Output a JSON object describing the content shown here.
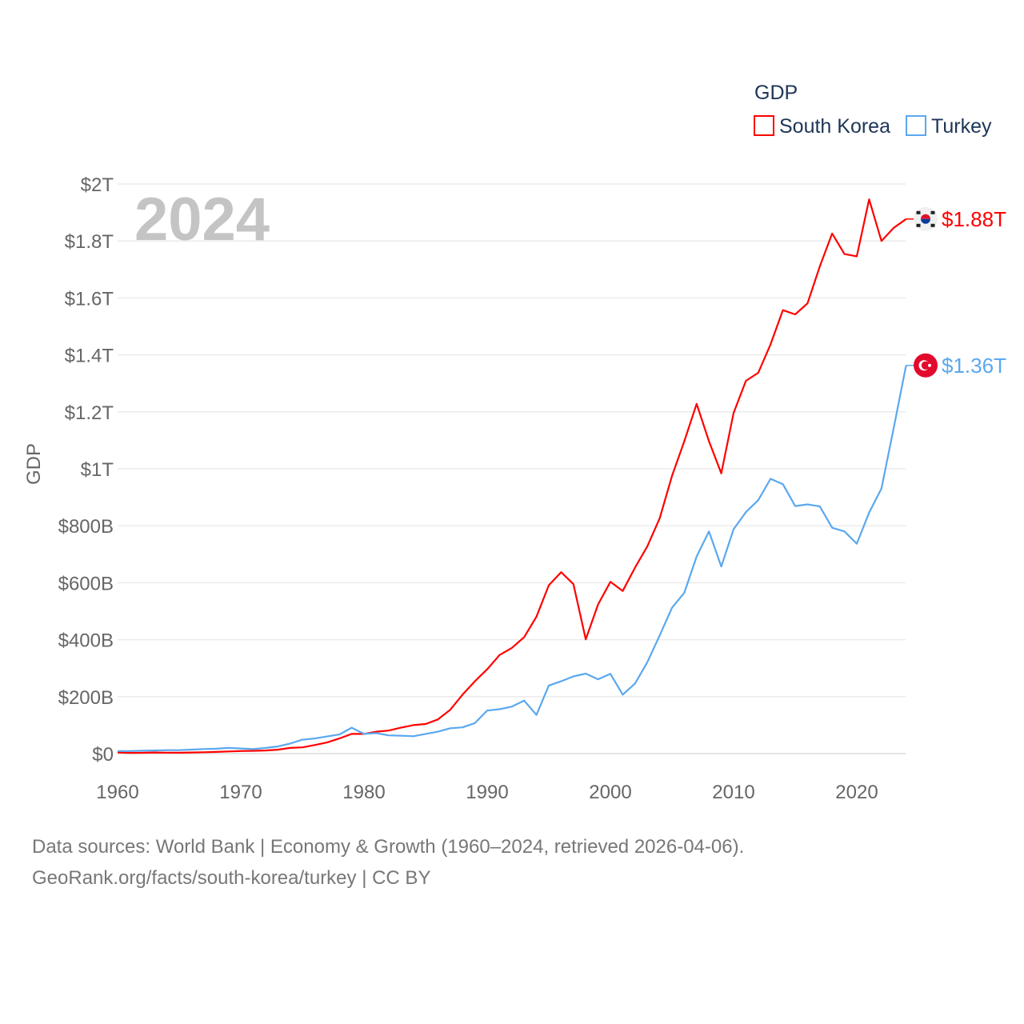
{
  "chart_data": {
    "type": "line",
    "title": "",
    "legend_title": "GDP",
    "legend_position": "top-right",
    "ylabel": "GDP",
    "xlabel": "",
    "year_overlay": "2024",
    "xlim": [
      1960,
      2024
    ],
    "ylim": [
      0,
      2000
    ],
    "units": "billion USD",
    "grid": true,
    "x_ticks": [
      1960,
      1970,
      1980,
      1990,
      2000,
      2010,
      2020
    ],
    "y_ticks": [
      {
        "value": 0,
        "label": "$0"
      },
      {
        "value": 200,
        "label": "$200B"
      },
      {
        "value": 400,
        "label": "$400B"
      },
      {
        "value": 600,
        "label": "$600B"
      },
      {
        "value": 800,
        "label": "$800B"
      },
      {
        "value": 1000,
        "label": "$1T"
      },
      {
        "value": 1200,
        "label": "$1.2T"
      },
      {
        "value": 1400,
        "label": "$1.4T"
      },
      {
        "value": 1600,
        "label": "$1.6T"
      },
      {
        "value": 1800,
        "label": "$1.8T"
      },
      {
        "value": 2000,
        "label": "$2T"
      }
    ],
    "x": [
      1960,
      1961,
      1962,
      1963,
      1964,
      1965,
      1966,
      1967,
      1968,
      1969,
      1970,
      1971,
      1972,
      1973,
      1974,
      1975,
      1976,
      1977,
      1978,
      1979,
      1980,
      1981,
      1982,
      1983,
      1984,
      1985,
      1986,
      1987,
      1988,
      1989,
      1990,
      1991,
      1992,
      1993,
      1994,
      1995,
      1996,
      1997,
      1998,
      1999,
      2000,
      2001,
      2002,
      2003,
      2004,
      2005,
      2006,
      2007,
      2008,
      2009,
      2010,
      2011,
      2012,
      2013,
      2014,
      2015,
      2016,
      2017,
      2018,
      2019,
      2020,
      2021,
      2022,
      2023,
      2024
    ],
    "series": [
      {
        "name": "South Korea",
        "color": "#ff0000",
        "end_label": "$1.88T",
        "flag": "south-korea",
        "values": [
          4,
          2.4,
          2.8,
          3.9,
          3.5,
          3.1,
          3.8,
          4.7,
          5.9,
          7.6,
          9,
          9.9,
          10.9,
          13.9,
          20,
          22,
          30,
          39,
          53,
          69,
          69,
          77,
          81,
          91,
          100,
          104,
          120,
          154,
          207,
          254,
          296,
          346,
          371,
          409,
          481,
          591,
          637,
          595,
          401,
          524,
          603,
          571,
          653,
          728,
          826,
          975,
          1097,
          1228,
          1097,
          984,
          1196,
          1309,
          1337,
          1437,
          1557,
          1542,
          1581,
          1711,
          1826,
          1754,
          1746,
          1946,
          1800,
          1846,
          1877
        ]
      },
      {
        "name": "Turkey",
        "color": "#5ba8ee",
        "end_label": "$1.36T",
        "flag": "turkey",
        "values": [
          9,
          9,
          10,
          11,
          12,
          12,
          14,
          16,
          17,
          20,
          18,
          16,
          20,
          25,
          35,
          49,
          53,
          60,
          67,
          91,
          69,
          72,
          64,
          63,
          61,
          69,
          77,
          89,
          92,
          107,
          151,
          156,
          165,
          186,
          136,
          239,
          254,
          271,
          281,
          261,
          280,
          207,
          246,
          321,
          415,
          512,
          565,
          692,
          780,
          657,
          788,
          848,
          890,
          965,
          946,
          869,
          875,
          868,
          793,
          780,
          737,
          846,
          931,
          1144,
          1363
        ]
      }
    ]
  },
  "footer": {
    "line1": "Data sources: World Bank | Economy & Growth (1960–2024, retrieved 2026-04-06).",
    "line2": "GeoRank.org/facts/south-korea/turkey | CC BY"
  }
}
